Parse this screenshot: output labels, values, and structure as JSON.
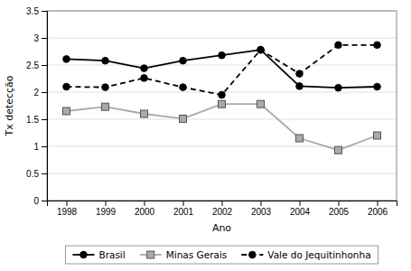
{
  "chart_data": {
    "type": "line",
    "x": [
      1998,
      1999,
      2000,
      2001,
      2002,
      2003,
      2004,
      2005,
      2006
    ],
    "series": [
      {
        "name": "Brasil",
        "color": "#000000",
        "marker": "circle",
        "line_style": "solid",
        "values": [
          2.61,
          2.58,
          2.44,
          2.58,
          2.68,
          2.78,
          2.11,
          2.08,
          2.1
        ]
      },
      {
        "name": "Minas Gerais",
        "color": "#aaaaaa",
        "marker": "square",
        "line_style": "solid",
        "values": [
          1.65,
          1.73,
          1.6,
          1.51,
          1.78,
          1.78,
          1.15,
          0.93,
          1.2
        ]
      },
      {
        "name": "Vale do Jequitinhonha",
        "color": "#000000",
        "marker": "circle",
        "line_style": "dashed",
        "values": [
          2.1,
          2.09,
          2.26,
          2.09,
          1.95,
          2.78,
          2.34,
          2.87,
          2.87
        ]
      }
    ],
    "x_label": "Ano",
    "y_label": "Tx detecção",
    "xlim": [
      1997.5,
      2006.5
    ],
    "xticks": [
      1998,
      1999,
      2000,
      2001,
      2002,
      2003,
      2004,
      2005,
      2006
    ],
    "ylim": [
      0,
      3.5
    ],
    "yticks": [
      0,
      0.5,
      1,
      1.5,
      2,
      2.5,
      3,
      3.5
    ],
    "grid": "y",
    "legend": "bottom"
  }
}
